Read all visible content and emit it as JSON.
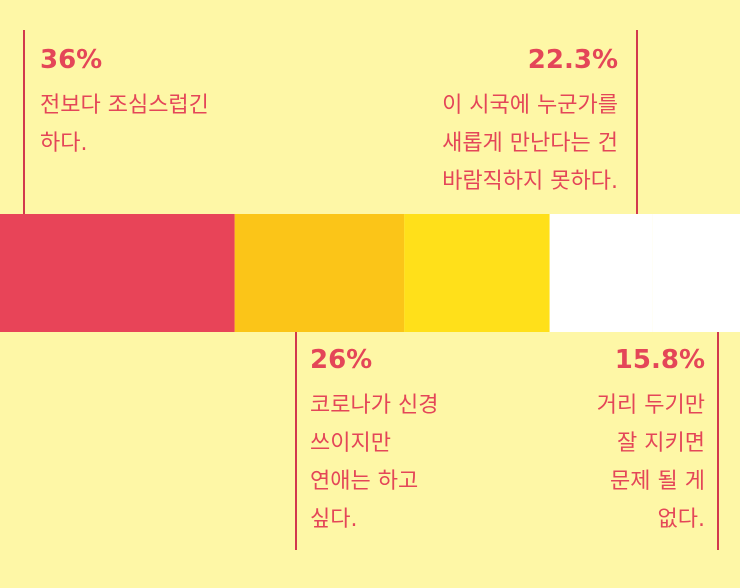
{
  "chart_data": {
    "type": "bar",
    "orientation": "horizontal-stacked",
    "categories": [
      "전보다 조심스럽긴 하다.",
      "코로나가 신경 쓰이지만 연애는 하고 싶다.",
      "이 시국에 누군가를 새롭게 만난다는 건 바람직하지 못하다.",
      "거리 두기만 잘 지키면 문제 될 게 없다."
    ],
    "values": [
      36,
      26,
      22.3,
      15.8
    ],
    "value_labels": [
      "36%",
      "26%",
      "22.3%",
      "15.8%"
    ],
    "label_lines": [
      [
        "전보다 조심스럽긴",
        "하다."
      ],
      [
        "코로나가 신경",
        "쓰이지만",
        "연애는 하고",
        "싶다."
      ],
      [
        "이 시국에 누군가를",
        "새롭게 만난다는 건",
        "바람직하지 못하다."
      ],
      [
        "거리 두기만",
        "잘 지키면",
        "문제 될 게",
        "없다."
      ]
    ],
    "label_positions": [
      "top-left",
      "bottom-left",
      "top-right",
      "bottom-right"
    ],
    "colors": [
      "#E84458",
      "#FBC518",
      "#FFE01A",
      "#FFFFFF"
    ],
    "text_color": "#E44658",
    "line_color": "#D2394D",
    "background": "#FEF7A6",
    "unit": "%"
  }
}
